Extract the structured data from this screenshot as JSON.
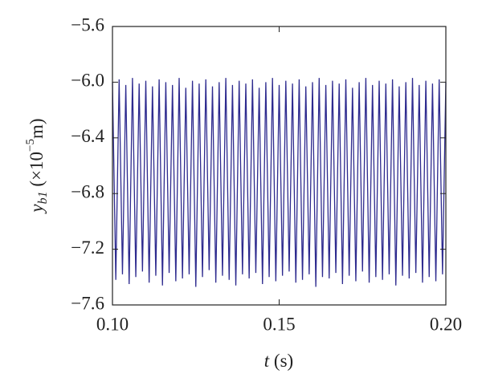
{
  "chart_data": {
    "type": "line",
    "x": [
      0.1,
      0.101,
      0.102,
      0.103,
      0.104,
      0.105,
      0.106,
      0.107,
      0.108,
      0.109,
      0.11,
      0.111,
      0.112,
      0.113,
      0.114,
      0.115,
      0.116,
      0.117,
      0.118,
      0.119,
      0.12,
      0.121,
      0.122,
      0.123,
      0.124,
      0.125,
      0.126,
      0.127,
      0.128,
      0.129,
      0.13,
      0.131,
      0.132,
      0.133,
      0.134,
      0.135,
      0.136,
      0.137,
      0.138,
      0.139,
      0.14,
      0.141,
      0.142,
      0.143,
      0.144,
      0.145,
      0.146,
      0.147,
      0.148,
      0.149,
      0.15,
      0.151,
      0.152,
      0.153,
      0.154,
      0.155,
      0.156,
      0.157,
      0.158,
      0.159,
      0.16,
      0.161,
      0.162,
      0.163,
      0.164,
      0.165,
      0.166,
      0.167,
      0.168,
      0.169,
      0.17,
      0.171,
      0.172,
      0.173,
      0.174,
      0.175,
      0.176,
      0.177,
      0.178,
      0.179,
      0.18,
      0.181,
      0.182,
      0.183,
      0.184,
      0.185,
      0.186,
      0.187,
      0.188,
      0.189,
      0.19,
      0.191,
      0.192,
      0.193,
      0.194,
      0.195,
      0.196,
      0.197,
      0.198,
      0.199,
      0.2
    ],
    "series": [
      {
        "color": "#2d2a8e",
        "values": [
          -6.0,
          -7.42,
          -5.98,
          -7.38,
          -6.02,
          -7.45,
          -5.97,
          -7.4,
          -6.01,
          -7.36,
          -5.99,
          -7.44,
          -6.03,
          -7.39,
          -5.98,
          -7.46,
          -6.0,
          -7.37,
          -6.02,
          -7.43,
          -5.97,
          -7.41,
          -6.04,
          -7.38,
          -5.99,
          -7.47,
          -6.01,
          -7.4,
          -5.98,
          -7.35,
          -6.03,
          -7.44,
          -6.0,
          -7.39,
          -5.97,
          -7.42,
          -6.02,
          -7.46,
          -5.99,
          -7.38,
          -6.01,
          -7.41,
          -5.98,
          -7.37,
          -6.04,
          -7.45,
          -6.0,
          -7.4,
          -5.97,
          -7.43,
          -6.02,
          -7.39,
          -5.99,
          -7.36,
          -6.01,
          -7.44,
          -5.98,
          -7.42,
          -6.03,
          -7.38,
          -6.0,
          -7.47,
          -5.97,
          -7.4,
          -6.02,
          -7.41,
          -5.99,
          -7.37,
          -6.01,
          -7.45,
          -5.98,
          -7.39,
          -6.04,
          -7.43,
          -6.0,
          -7.36,
          -5.97,
          -7.44,
          -6.02,
          -7.4,
          -5.99,
          -7.42,
          -6.01,
          -7.38,
          -5.98,
          -7.46,
          -6.03,
          -7.39,
          -6.0,
          -7.41,
          -5.97,
          -7.37,
          -6.02,
          -7.44,
          -5.99,
          -7.4,
          -6.01,
          -7.43,
          -5.98,
          -7.38,
          -6.0
        ]
      }
    ],
    "xlim": [
      0.1,
      0.2
    ],
    "xticks": [
      {
        "value": 0.1,
        "label": "0.10"
      },
      {
        "value": 0.15,
        "label": "0.15"
      },
      {
        "value": 0.2,
        "label": "0.20"
      }
    ],
    "ylim": [
      -7.6,
      -5.6
    ],
    "yticks": [
      {
        "value": -7.6,
        "label": "−7.6"
      },
      {
        "value": -7.2,
        "label": "−7.2"
      },
      {
        "value": -6.8,
        "label": "−6.8"
      },
      {
        "value": -6.4,
        "label": "−6.4"
      },
      {
        "value": -6.0,
        "label": "−6.0"
      },
      {
        "value": -5.6,
        "label": "−5.6"
      }
    ],
    "xlabel": {
      "var": "t",
      "unit": "(s)"
    },
    "ylabel": {
      "var": "y",
      "sub": "b1",
      "pre": "(×10",
      "sup": "−5",
      "post": "m)"
    }
  }
}
